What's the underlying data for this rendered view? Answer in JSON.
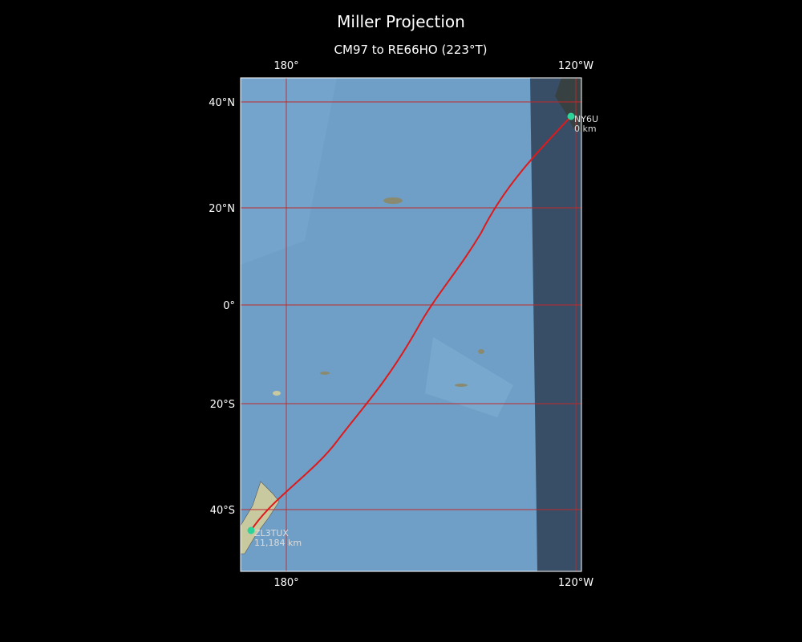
{
  "title": "Miller Projection",
  "subtitle": "CM97 to RE66HO (223°T)",
  "longitude_labels": {
    "top": [
      "180°",
      "120°W"
    ],
    "bottom": [
      "180°",
      "120°W"
    ]
  },
  "latitude_labels": [
    "40°N",
    "20°N",
    "0°",
    "20°S",
    "40°S"
  ],
  "stations": [
    {
      "call": "NY6U",
      "distance": "0 km"
    },
    {
      "call": "ZL3TUX",
      "distance": "11,184 km"
    }
  ]
}
